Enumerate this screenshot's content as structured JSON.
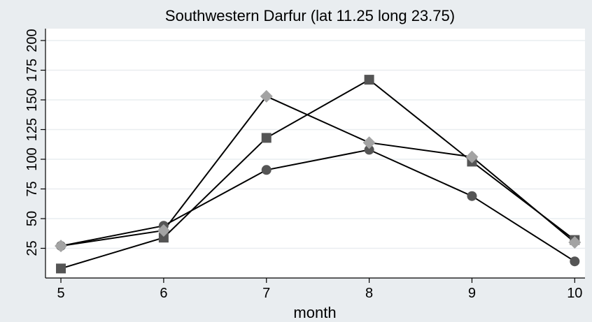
{
  "chart_data": {
    "type": "line",
    "title": "Southwestern Darfur (lat 11.25 long 23.75)",
    "xlabel": "month",
    "ylabel": "",
    "x": [
      5,
      6,
      7,
      8,
      9,
      10
    ],
    "x_ticks": [
      "5",
      "6",
      "7",
      "8",
      "9",
      "10"
    ],
    "y_ticks": [
      "25",
      "50",
      "75",
      "100",
      "125",
      "150",
      "175",
      "200"
    ],
    "ylim": [
      0,
      210
    ],
    "xlim": [
      4.85,
      10.1
    ],
    "grid": true,
    "legend": "none",
    "series": [
      {
        "marker": "circle",
        "color": "#555555",
        "values": [
          27,
          44,
          91,
          108,
          69,
          14
        ]
      },
      {
        "marker": "square",
        "color": "#555555",
        "values": [
          8,
          34,
          118,
          167,
          98,
          32
        ]
      },
      {
        "marker": "diamond",
        "color": "#a3a3a3",
        "values": [
          27,
          40,
          153,
          114,
          102,
          30
        ]
      }
    ]
  },
  "colors": {
    "background": "#e9edf0",
    "plot_area": "#ffffff",
    "gridline": "#e9edf0",
    "line": "#000000"
  }
}
